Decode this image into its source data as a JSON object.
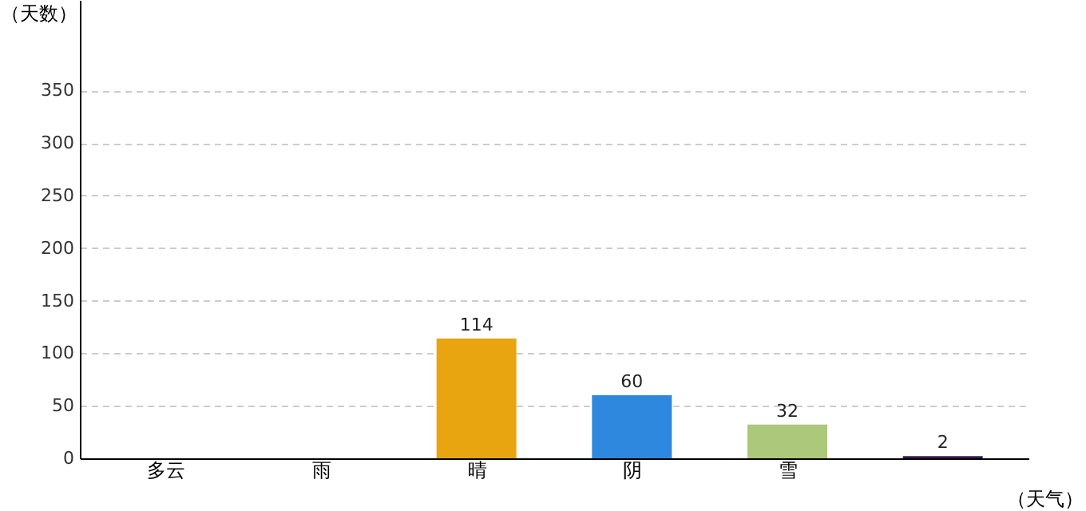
{
  "chart_data": {
    "type": "bar",
    "xlabel": "（天气）",
    "ylabel": "（天数）",
    "categories": [
      "多云",
      "雨",
      "晴",
      "阴",
      "雪",
      null
    ],
    "values": [
      null,
      null,
      114,
      60,
      32,
      2
    ],
    "colors": [
      "#b5608f",
      "#c6ec48",
      "#e8a510",
      "#2e88de",
      "#acc87a",
      "#3a1a4a"
    ],
    "value_labels": [
      null,
      null,
      "114",
      "60",
      "32",
      "2"
    ],
    "ylim": [
      0,
      436
    ],
    "yticks": [
      0,
      50,
      100,
      150,
      200,
      250,
      300,
      350
    ],
    "grid": "y"
  }
}
